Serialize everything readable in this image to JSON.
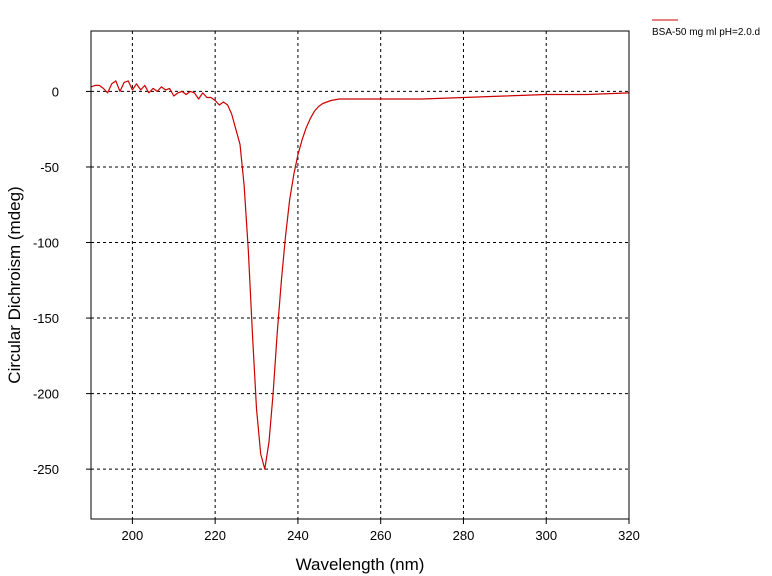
{
  "chart_data": {
    "type": "line",
    "xlabel": "Wavelength (nm)",
    "ylabel": "Circular Dichroism (mdeg)",
    "xlim": [
      190,
      320
    ],
    "ylim": [
      -283,
      40
    ],
    "xticks": [
      200,
      220,
      240,
      260,
      280,
      300,
      320
    ],
    "yticks": [
      0,
      -50,
      -100,
      -150,
      -200,
      -250
    ],
    "grid": true,
    "legend_position": "top-right",
    "colors": {
      "series": "#cc0000",
      "grid": "#000000",
      "frame": "#000000"
    },
    "series": [
      {
        "name": "BSA-50 mg ml pH=2.0.d",
        "points": [
          [
            190,
            3
          ],
          [
            191,
            4
          ],
          [
            192,
            4
          ],
          [
            193,
            2
          ],
          [
            194,
            -1
          ],
          [
            195,
            5
          ],
          [
            196,
            7
          ],
          [
            197,
            0
          ],
          [
            198,
            6
          ],
          [
            199,
            7
          ],
          [
            200,
            1
          ],
          [
            201,
            5
          ],
          [
            202,
            1
          ],
          [
            203,
            4
          ],
          [
            204,
            -1
          ],
          [
            205,
            2
          ],
          [
            206,
            0
          ],
          [
            207,
            3
          ],
          [
            208,
            1
          ],
          [
            209,
            2
          ],
          [
            210,
            -3
          ],
          [
            211,
            -1
          ],
          [
            212,
            0
          ],
          [
            213,
            -2
          ],
          [
            214,
            0
          ],
          [
            215,
            -1
          ],
          [
            216,
            -5
          ],
          [
            217,
            -1
          ],
          [
            218,
            -4
          ],
          [
            219,
            -4
          ],
          [
            220,
            -6
          ],
          [
            221,
            -9
          ],
          [
            222,
            -7
          ],
          [
            223,
            -9
          ],
          [
            224,
            -15
          ],
          [
            225,
            -25
          ],
          [
            226,
            -35
          ],
          [
            227,
            -62
          ],
          [
            228,
            -105
          ],
          [
            229,
            -160
          ],
          [
            230,
            -210
          ],
          [
            231,
            -240
          ],
          [
            232,
            -250
          ],
          [
            233,
            -232
          ],
          [
            234,
            -200
          ],
          [
            235,
            -160
          ],
          [
            236,
            -125
          ],
          [
            237,
            -96
          ],
          [
            238,
            -72
          ],
          [
            239,
            -55
          ],
          [
            240,
            -42
          ],
          [
            241,
            -32
          ],
          [
            242,
            -24
          ],
          [
            243,
            -18
          ],
          [
            244,
            -13
          ],
          [
            245,
            -10
          ],
          [
            246,
            -8
          ],
          [
            247,
            -7
          ],
          [
            248,
            -6
          ],
          [
            250,
            -5
          ],
          [
            255,
            -5
          ],
          [
            260,
            -5
          ],
          [
            270,
            -5
          ],
          [
            280,
            -4
          ],
          [
            290,
            -3
          ],
          [
            300,
            -2
          ],
          [
            310,
            -2
          ],
          [
            320,
            -1
          ]
        ]
      }
    ]
  }
}
